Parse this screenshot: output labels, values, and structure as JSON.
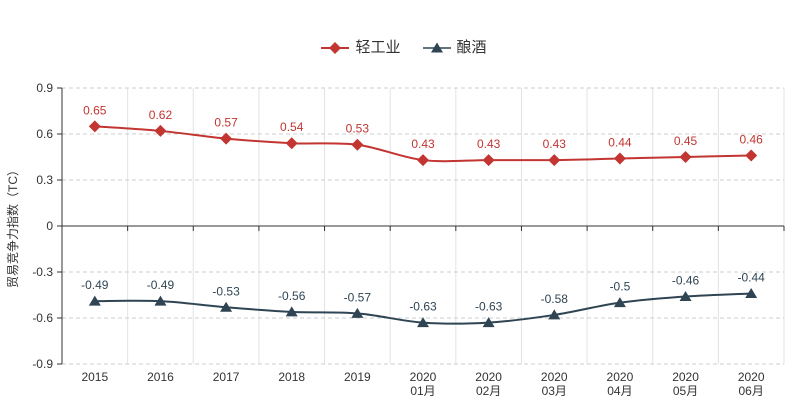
{
  "chart_data": {
    "type": "line",
    "categories": [
      "2015",
      "2016",
      "2017",
      "2018",
      "2019",
      "2020 01月",
      "2020 02月",
      "2020 03月",
      "2020 04月",
      "2020 05月",
      "2020 06月"
    ],
    "series": [
      {
        "name": "轻工业",
        "symbol": "diamond",
        "color": "#c23531",
        "values": [
          0.65,
          0.62,
          0.57,
          0.54,
          0.53,
          0.43,
          0.43,
          0.43,
          0.44,
          0.45,
          0.46
        ]
      },
      {
        "name": "酿酒",
        "symbol": "triangle",
        "color": "#2f4554",
        "values": [
          -0.49,
          -0.49,
          -0.53,
          -0.56,
          -0.57,
          -0.63,
          -0.63,
          -0.58,
          -0.5,
          -0.46,
          -0.44
        ]
      }
    ],
    "title": "",
    "xlabel": "",
    "ylabel": "贸易竞争力指数（TC）",
    "ylim": [
      -0.9,
      0.9
    ],
    "ytick_step": 0.3,
    "yticks": [
      0.9,
      0.6,
      0.3,
      0,
      -0.3,
      -0.6,
      -0.9
    ],
    "grid": "horizontal dashed + vertical solid, zero axis solid",
    "legend_position": "top-center",
    "smooth": true,
    "value_labels": "above points"
  },
  "colors": {
    "series_light_industry": "#c23531",
    "series_brewing": "#2f4554",
    "axis_line": "#333333",
    "axis_text": "#333333",
    "legend_text": "#333333",
    "grid_dashed": "#cccccc",
    "grid_vertical": "#e0e3e6",
    "background": "#ffffff"
  }
}
